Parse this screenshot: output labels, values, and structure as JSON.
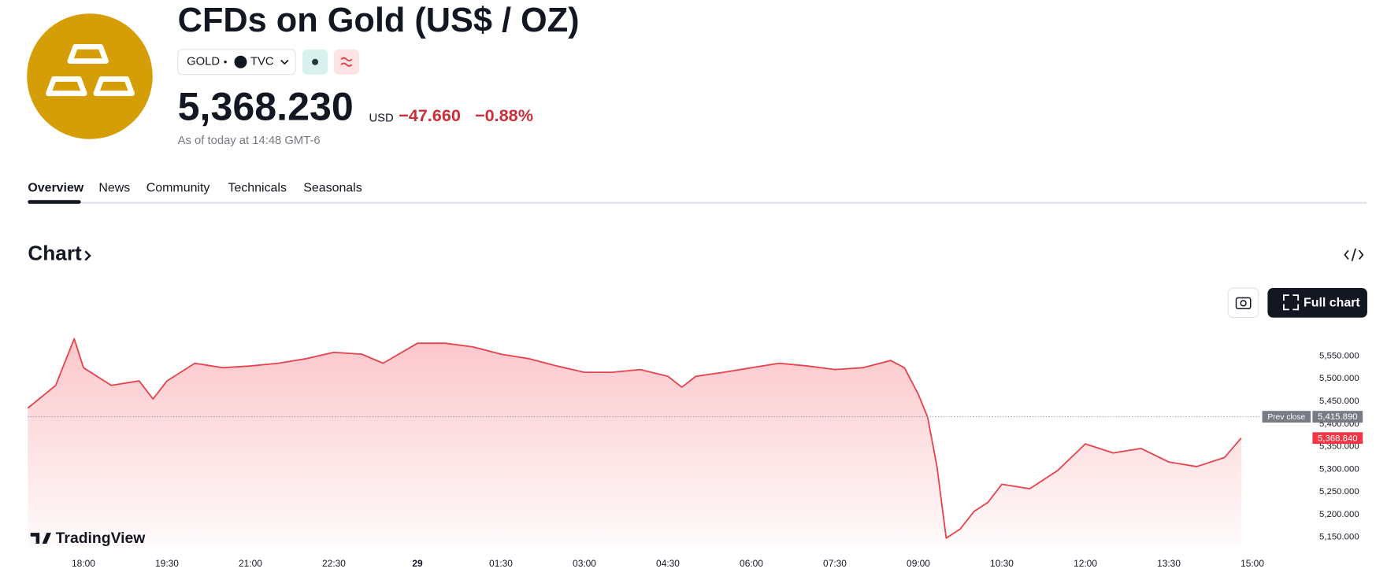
{
  "header": {
    "title": "CFDs on Gold (US$ / OZ)",
    "symbol": "GOLD",
    "exchange": "TVC",
    "price": "5,368.230",
    "currency": "USD",
    "change": "−47.660",
    "change_percent": "−0.88%",
    "as_of": "As of today at 14:48 GMT-6"
  },
  "tabs": [
    "Overview",
    "News",
    "Community",
    "Technicals",
    "Seasonals"
  ],
  "section_title": "Chart",
  "buttons": {
    "full_chart": "Full chart"
  },
  "watermark": "TradingView",
  "chart_data": {
    "type": "area",
    "color": "#e5444e",
    "x": [
      "17:00",
      "17:30",
      "17:50",
      "18:00",
      "18:30",
      "19:00",
      "19:15",
      "19:30",
      "20:00",
      "20:30",
      "21:00",
      "21:30",
      "22:00",
      "22:30",
      "23:00",
      "23:23",
      "00:00",
      "00:30",
      "01:00",
      "01:30",
      "02:00",
      "02:30",
      "03:00",
      "03:30",
      "04:00",
      "04:30",
      "04:45",
      "05:00",
      "05:30",
      "06:00",
      "06:30",
      "07:00",
      "07:30",
      "08:00",
      "08:30",
      "08:45",
      "09:00",
      "09:10",
      "09:20",
      "09:30",
      "09:45",
      "10:00",
      "10:15",
      "10:30",
      "11:00",
      "11:30",
      "12:00",
      "12:30",
      "13:00",
      "13:30",
      "14:00",
      "14:30",
      "14:48"
    ],
    "values": [
      5435,
      5485,
      5588,
      5524,
      5485,
      5495,
      5455,
      5495,
      5534,
      5524,
      5528,
      5534,
      5544,
      5558,
      5554,
      5534,
      5578,
      5578,
      5570,
      5554,
      5544,
      5528,
      5514,
      5514,
      5520,
      5505,
      5481,
      5505,
      5514,
      5524,
      5534,
      5528,
      5520,
      5524,
      5540,
      5524,
      5465,
      5415,
      5306,
      5148,
      5168,
      5207,
      5227,
      5267,
      5257,
      5297,
      5356,
      5336,
      5346,
      5316,
      5306,
      5326,
      5368.84
    ],
    "last_label": "5,368.840",
    "reference_line": {
      "label": "Prev close",
      "value": 5415.89,
      "value_label": "5,415.890"
    },
    "ylim": [
      5128,
      5603
    ],
    "yticks": [
      {
        "value": 5150,
        "label": "5,150.000"
      },
      {
        "value": 5200,
        "label": "5,200.000"
      },
      {
        "value": 5250,
        "label": "5,250.000"
      },
      {
        "value": 5300,
        "label": "5,300.000"
      },
      {
        "value": 5350,
        "label": "5,350.000"
      },
      {
        "value": 5400,
        "label": "5,400.000"
      },
      {
        "value": 5450,
        "label": "5,450.000"
      },
      {
        "value": 5500,
        "label": "5,500.000"
      },
      {
        "value": 5550,
        "label": "5,550.000"
      }
    ],
    "xticks": [
      "18:00",
      "19:30",
      "21:00",
      "22:30",
      {
        "value": "00:00",
        "label": "29"
      },
      "01:30",
      "03:00",
      "04:30",
      "06:00",
      "07:30",
      "09:00",
      "10:30",
      "12:00",
      "13:30",
      "15:00"
    ],
    "grid": false
  }
}
